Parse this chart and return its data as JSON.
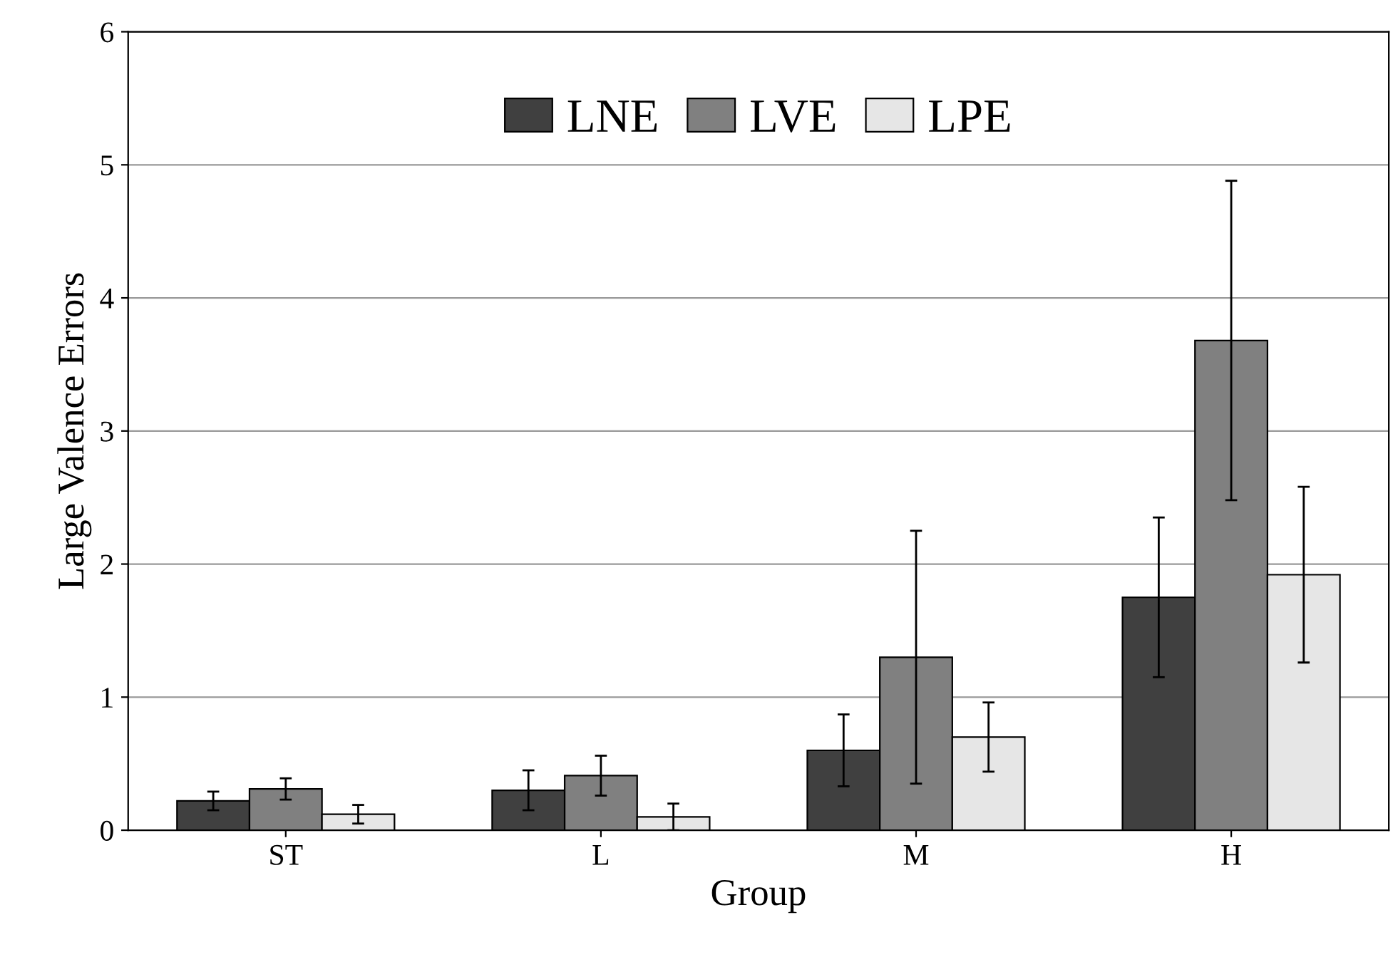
{
  "chart_data": {
    "type": "bar",
    "xlabel": "Group",
    "ylabel": "Large Valence Errors",
    "categories": [
      "ST",
      "L",
      "M",
      "H"
    ],
    "series": [
      {
        "name": "LNE",
        "color": "#404040",
        "values": [
          0.22,
          0.3,
          0.6,
          1.75
        ],
        "errors": [
          0.07,
          0.15,
          0.27,
          0.6
        ]
      },
      {
        "name": "LVE",
        "color": "#808080",
        "values": [
          0.31,
          0.41,
          1.3,
          3.68
        ],
        "errors": [
          0.08,
          0.15,
          0.95,
          1.2
        ]
      },
      {
        "name": "LPE",
        "color": "#e6e6e6",
        "values": [
          0.12,
          0.1,
          0.7,
          1.92
        ],
        "errors": [
          0.07,
          0.1,
          0.26,
          0.66
        ]
      }
    ],
    "ylim": [
      0,
      6
    ],
    "yticks": [
      0,
      1,
      2,
      3,
      4,
      5,
      6
    ],
    "grid": "y",
    "legend": "top"
  }
}
